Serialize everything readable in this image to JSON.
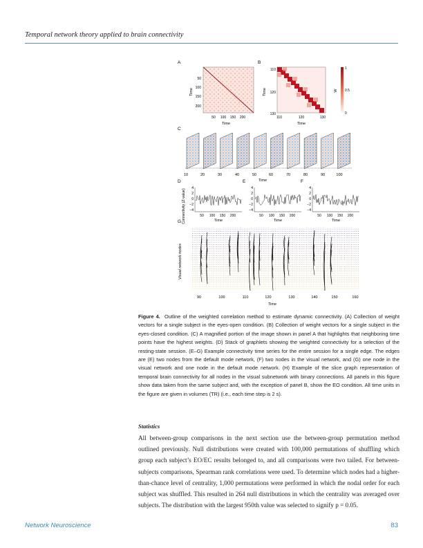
{
  "header": {
    "running_title": "Temporal network theory applied to brain connectivity"
  },
  "figure": {
    "panel_labels": [
      "A",
      "B",
      "C",
      "D",
      "E",
      "F",
      "G"
    ],
    "panelA": {
      "ylabel": "Time",
      "xlabel": "Time",
      "yticks": [
        "50",
        "100",
        "150",
        "200"
      ],
      "xticks": [
        "50",
        "100",
        "150",
        "200"
      ]
    },
    "panelB": {
      "ylabel": "Time",
      "xlabel": "Time",
      "yticks": [
        "110",
        "120",
        "130"
      ],
      "xticks": [
        "110",
        "120",
        "130"
      ],
      "colorbar_label": "W",
      "colorbar_ticks": [
        "1",
        "0.5",
        "0"
      ]
    },
    "panelC": {
      "xlabel": "Time",
      "xticks": [
        "10",
        "20",
        "30",
        "40",
        "50",
        "60",
        "70",
        "80",
        "90",
        "100"
      ]
    },
    "panelDEF": {
      "ylabel": "Connectivity (Z-value)",
      "yticks": [
        "4",
        "2",
        "0",
        "−2",
        "−4"
      ],
      "xticks": [
        "50",
        "100",
        "150",
        "200"
      ],
      "xlabel": "Time"
    },
    "panelG": {
      "ylabel": "Visual network nodes",
      "xlabel": "Time",
      "xticks": [
        "90",
        "100",
        "110",
        "120",
        "130",
        "140",
        "150",
        "160"
      ]
    }
  },
  "caption": {
    "label": "Figure 4.",
    "text": "Outline of the weighted correlation method to estimate dynamic connectivity. (A) Collection of weight vectors for a single subject in the eyes-open condition. (B) Collection of weight vectors for a single subject in the eyes-closed condition. (C) A magnified portion of the image shown in panel A that highlights that neighboring time points have the highest weights. (D) Stack of graphlets showing the weighted connectivity for a selection of the resting-state session. (E–G) Example connectivity time series for the entire session for a single edge. The edges are (E) two nodes from the default mode network, (F) two nodes in the visual network, and (G) one node in the visual network and one node in the default mode network. (H) Example of the slice graph representation of temporal brain connectivity for all nodes in the visual subnetwork with binary connections. All panels in this figure show data taken from the same subject and, with the exception of panel B, show the EO condition. All time units in the figure are given in volumes (TR) (i.e., each time step is 2 s)."
  },
  "section": {
    "heading": "Statistics",
    "paragraph": "All between-group comparisons in the next section use the between-group permutation method outlined previously. Null distributions were created with 100,000 permutations of shuffling which group each subject’s EO/EC results belonged to, and all comparisons were two tailed. For between-subjects comparisons, Spearman rank correlations were used. To determine which nodes had a higher-than-chance level of centrality, 1,000 permutations were performed in which the nodal order for each subject was shuffled. This resulted in 264 null distributions in which the centrality was averaged over subjects. The distribution with the largest 950th value was selected to signify p = 0.05."
  },
  "footer": {
    "journal": "Network Neuroscience",
    "page": "83"
  }
}
